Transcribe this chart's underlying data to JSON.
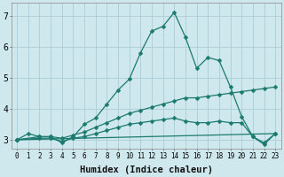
{
  "xlabel": "Humidex (Indice chaleur)",
  "background_color": "#cfe8ee",
  "grid_color": "#aacdd6",
  "line_color": "#1a7a6e",
  "xlim": [
    -0.5,
    23.5
  ],
  "ylim": [
    2.7,
    7.4
  ],
  "yticks": [
    3,
    4,
    5,
    6,
    7
  ],
  "xticks": [
    0,
    1,
    2,
    3,
    4,
    5,
    6,
    7,
    8,
    9,
    10,
    11,
    12,
    13,
    14,
    15,
    16,
    17,
    18,
    19,
    20,
    21,
    22,
    23
  ],
  "line1_x": [
    0,
    1,
    2,
    3,
    4,
    5,
    6,
    7,
    8,
    9,
    10,
    11,
    12,
    13,
    14,
    15,
    16,
    17,
    18,
    19,
    20,
    21,
    22,
    23
  ],
  "line1_y": [
    3.0,
    3.2,
    3.1,
    3.1,
    2.9,
    3.1,
    3.5,
    3.7,
    4.15,
    4.6,
    4.95,
    5.8,
    6.5,
    6.65,
    7.1,
    6.3,
    5.3,
    5.65,
    5.55,
    4.7,
    3.75,
    3.1,
    2.85,
    3.2
  ],
  "line2_x": [
    0,
    2,
    3,
    4,
    5,
    6,
    7,
    8,
    9,
    10,
    11,
    12,
    13,
    14,
    15,
    16,
    17,
    18,
    19,
    20,
    21,
    22,
    23
  ],
  "line2_y": [
    3.0,
    3.1,
    3.1,
    3.05,
    3.15,
    3.25,
    3.4,
    3.55,
    3.7,
    3.85,
    3.95,
    4.05,
    4.15,
    4.25,
    4.35,
    4.35,
    4.4,
    4.45,
    4.5,
    4.55,
    4.6,
    4.65,
    4.7
  ],
  "line3_x": [
    0,
    2,
    3,
    4,
    5,
    6,
    7,
    8,
    9,
    10,
    11,
    12,
    13,
    14,
    15,
    16,
    17,
    18,
    19,
    20,
    21,
    22,
    23
  ],
  "line3_y": [
    3.0,
    3.05,
    3.05,
    2.95,
    3.05,
    3.1,
    3.2,
    3.3,
    3.4,
    3.5,
    3.55,
    3.6,
    3.65,
    3.7,
    3.6,
    3.55,
    3.55,
    3.6,
    3.55,
    3.55,
    3.1,
    2.9,
    3.2
  ],
  "line4_x": [
    0,
    23
  ],
  "line4_y": [
    3.0,
    3.2
  ],
  "markersize": 2.5,
  "linewidth": 0.9,
  "xlabel_fontsize": 7.5,
  "tick_fontsize": 5.5,
  "ytick_fontsize": 7
}
